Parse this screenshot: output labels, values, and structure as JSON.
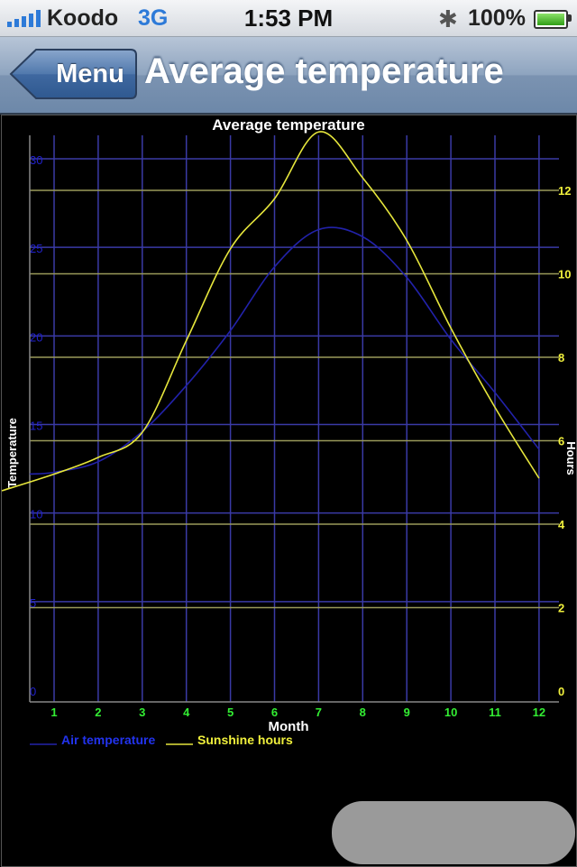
{
  "status_bar": {
    "carrier": "Koodo",
    "network": "3G",
    "time": "1:53 PM",
    "battery": "100%",
    "icons": [
      "signal-icon",
      "bluetooth-icon",
      "battery-icon"
    ]
  },
  "nav": {
    "back_label": "Menu",
    "title": "Average temperature"
  },
  "chart_data": {
    "type": "line",
    "title": "Average temperature",
    "xlabel": "Month",
    "ylabel": "Temperature",
    "y2label": "Hours",
    "categories": [
      "1",
      "2",
      "3",
      "4",
      "5",
      "6",
      "7",
      "8",
      "9",
      "10",
      "11",
      "12"
    ],
    "ylim": [
      0,
      32
    ],
    "y2lim": [
      0,
      13.2
    ],
    "yticks": [
      0,
      5,
      10,
      15,
      20,
      25,
      30
    ],
    "y2ticks": [
      0,
      2,
      4,
      6,
      8,
      10,
      12
    ],
    "grid": true,
    "legend_placement": "bottom-left",
    "series": [
      {
        "name": "Air temperature",
        "axis": "left",
        "color": "#2222aa",
        "values": [
          12.3,
          12.9,
          14.6,
          17.2,
          20.3,
          23.9,
          26.0,
          25.6,
          23.3,
          19.8,
          16.8,
          13.6
        ]
      },
      {
        "name": "Sunshine hours",
        "axis": "right",
        "color": "#e6e63c",
        "values": [
          5.2,
          5.6,
          6.2,
          8.4,
          10.6,
          11.8,
          13.4,
          12.3,
          10.8,
          8.7,
          6.8,
          5.1
        ]
      }
    ],
    "colors": {
      "left_ticks": "#2222cc",
      "right_ticks": "#f0f03c",
      "x_ticks": "#33ee33",
      "grid_v": "#3a3aa6",
      "grid_h_left": "#3a3aa6",
      "grid_h_right": "#9a9a5a"
    }
  }
}
